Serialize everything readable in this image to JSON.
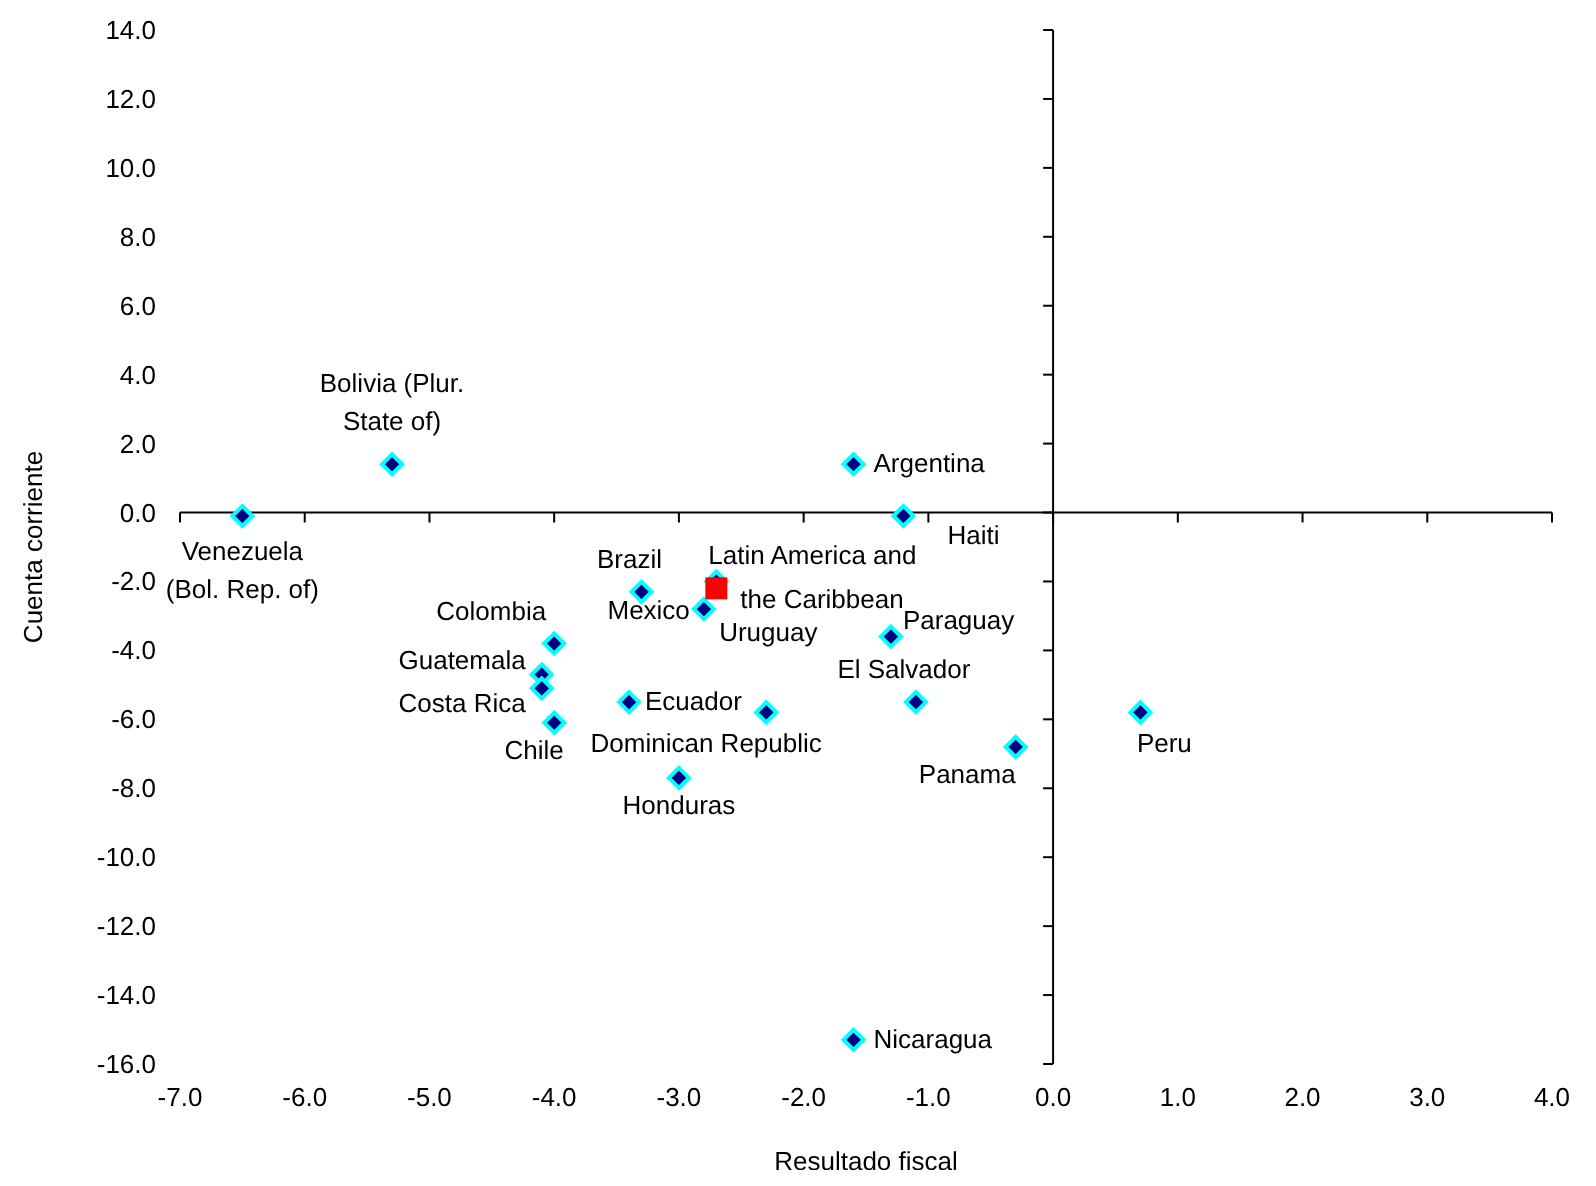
{
  "chart_data": {
    "type": "scatter",
    "xlabel": "Resultado fiscal",
    "ylabel": "Cuenta corriente",
    "xlim": [
      -7,
      4
    ],
    "ylim": [
      -16,
      14
    ],
    "xticks": [
      {
        "value": -7,
        "label": "-7.0"
      },
      {
        "value": -6,
        "label": "-6.0"
      },
      {
        "value": -5,
        "label": "-5.0"
      },
      {
        "value": -4,
        "label": "-4.0"
      },
      {
        "value": -3,
        "label": "-3.0"
      },
      {
        "value": -2,
        "label": "-2.0"
      },
      {
        "value": -1,
        "label": "-1.0"
      },
      {
        "value": 0,
        "label": "0.0"
      },
      {
        "value": 1,
        "label": "1.0"
      },
      {
        "value": 2,
        "label": "2.0"
      },
      {
        "value": 3,
        "label": "3.0"
      },
      {
        "value": 4,
        "label": "4.0"
      }
    ],
    "yticks": [
      {
        "value": -16,
        "label": "-16.0"
      },
      {
        "value": -14,
        "label": "-14.0"
      },
      {
        "value": -12,
        "label": "-12.0"
      },
      {
        "value": -10,
        "label": "-10.0"
      },
      {
        "value": -8,
        "label": "-8.0"
      },
      {
        "value": -6,
        "label": "-6.0"
      },
      {
        "value": -4,
        "label": "-4.0"
      },
      {
        "value": -2,
        "label": "-2.0"
      },
      {
        "value": 0,
        "label": "0.0"
      },
      {
        "value": 2,
        "label": "2.0"
      },
      {
        "value": 4,
        "label": "4.0"
      },
      {
        "value": 6,
        "label": "6.0"
      },
      {
        "value": 8,
        "label": "8.0"
      },
      {
        "value": 10,
        "label": "10.0"
      },
      {
        "value": 12,
        "label": "12.0"
      },
      {
        "value": 14,
        "label": "14.0"
      }
    ],
    "series": [
      {
        "color": "#000080",
        "marker": "diamond",
        "x": [
          -6.5,
          -5.3,
          -1.6,
          -1.2,
          -3.3,
          -2.8,
          -2.7,
          -1.3,
          -4.0,
          -4.1,
          -4.1,
          -4.0,
          -3.4,
          -2.3,
          -1.1,
          0.7,
          -0.3,
          -3.0,
          -1.6
        ],
        "values": [
          -0.1,
          1.4,
          1.4,
          -0.1,
          -2.3,
          -2.8,
          -2.0,
          -3.6,
          -3.8,
          -4.7,
          -5.1,
          -6.1,
          -5.5,
          -5.8,
          -5.5,
          -5.8,
          -6.8,
          -7.7,
          -15.3
        ]
      },
      {
        "name": "Latin America and the Caribbean",
        "color": "#ff0000",
        "marker": "square",
        "x": [
          -2.7
        ],
        "values": [
          -2.2
        ]
      }
    ],
    "annotations": [
      {
        "text": "Venezuela (Bol. Rep. of)",
        "x": -6.5,
        "y": -0.1
      },
      {
        "text": "Bolivia (Plur. State of)",
        "x": -5.3,
        "y": 1.4
      },
      {
        "text": "Argentina",
        "x": -1.6,
        "y": 1.4
      },
      {
        "text": "Haiti",
        "x": -1.2,
        "y": -0.1
      },
      {
        "text": "Brazil",
        "x": -3.3,
        "y": -2.3
      },
      {
        "text": "Mexico",
        "x": -2.8,
        "y": -2.8
      },
      {
        "text": "Uruguay",
        "x": -2.7,
        "y": -2.0
      },
      {
        "text": "Paraguay",
        "x": -1.3,
        "y": -3.6
      },
      {
        "text": "Colombia",
        "x": -4.0,
        "y": -3.8
      },
      {
        "text": "Guatemala",
        "x": -4.1,
        "y": -4.7
      },
      {
        "text": "Costa Rica",
        "x": -4.1,
        "y": -5.1
      },
      {
        "text": "Chile",
        "x": -4.0,
        "y": -6.1
      },
      {
        "text": "Ecuador",
        "x": -3.4,
        "y": -5.5
      },
      {
        "text": "Dominican Republic",
        "x": -2.3,
        "y": -5.8
      },
      {
        "text": "El Salvador",
        "x": -1.1,
        "y": -5.5
      },
      {
        "text": "Peru",
        "x": 0.7,
        "y": -5.8
      },
      {
        "text": "Panama",
        "x": -0.3,
        "y": -6.8
      },
      {
        "text": "Honduras",
        "x": -3.0,
        "y": -7.7
      },
      {
        "text": "Nicaragua",
        "x": -1.6,
        "y": -15.3
      }
    ]
  }
}
